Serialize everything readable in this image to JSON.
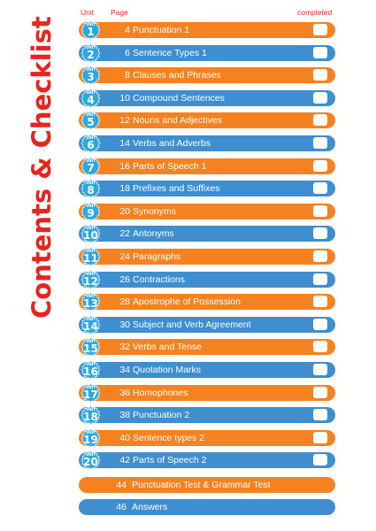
{
  "side_title": "Contents & Checklist",
  "header": {
    "unit": "Unit",
    "page": "Page",
    "completed": "completed"
  },
  "unit_label": "UNIT",
  "colors": {
    "orange": "#f58220",
    "blue": "#3e8ed0",
    "badge": "#2aa8e0",
    "title_red": "#e6251f"
  },
  "units": [
    {
      "num": "1",
      "page": "4",
      "title": "Punctuation 1",
      "color": "orange"
    },
    {
      "num": "2",
      "page": "6",
      "title": "Sentence Types 1",
      "color": "blue"
    },
    {
      "num": "3",
      "page": "8",
      "title": "Clauses and Phrases",
      "color": "orange"
    },
    {
      "num": "4",
      "page": "10",
      "title": "Compound Sentences",
      "color": "blue"
    },
    {
      "num": "5",
      "page": "12",
      "title": "Nouns and Adjectives",
      "color": "orange"
    },
    {
      "num": "6",
      "page": "14",
      "title": "Verbs and Adverbs",
      "color": "blue"
    },
    {
      "num": "7",
      "page": "16",
      "title": "Parts of Speech 1",
      "color": "orange"
    },
    {
      "num": "8",
      "page": "18",
      "title": "Prefixes and Suffixes",
      "color": "blue"
    },
    {
      "num": "9",
      "page": "20",
      "title": "Synonyms",
      "color": "orange"
    },
    {
      "num": "10",
      "page": "22",
      "title": "Antonyms",
      "color": "blue"
    },
    {
      "num": "11",
      "page": "24",
      "title": "Paragraphs",
      "color": "orange"
    },
    {
      "num": "12",
      "page": "26",
      "title": "Contractions",
      "color": "blue"
    },
    {
      "num": "13",
      "page": "28",
      "title": "Apostrophe of Possession",
      "color": "orange"
    },
    {
      "num": "14",
      "page": "30",
      "title": "Subject and Verb Agreement",
      "color": "blue"
    },
    {
      "num": "15",
      "page": "32",
      "title": "Verbs and Tense",
      "color": "orange"
    },
    {
      "num": "16",
      "page": "34",
      "title": "Quotation Marks",
      "color": "blue"
    },
    {
      "num": "17",
      "page": "36",
      "title": "Homophones",
      "color": "orange"
    },
    {
      "num": "18",
      "page": "38",
      "title": "Punctuation 2",
      "color": "blue"
    },
    {
      "num": "19",
      "page": "40",
      "title": "Sentence types 2",
      "color": "orange"
    },
    {
      "num": "20",
      "page": "42",
      "title": "Parts of Speech 2",
      "color": "blue"
    }
  ],
  "extras": [
    {
      "page": "44",
      "title": "Punctuation Test & Grammar Test",
      "color": "orange"
    },
    {
      "page": "46",
      "title": "Answers",
      "color": "blue"
    }
  ]
}
